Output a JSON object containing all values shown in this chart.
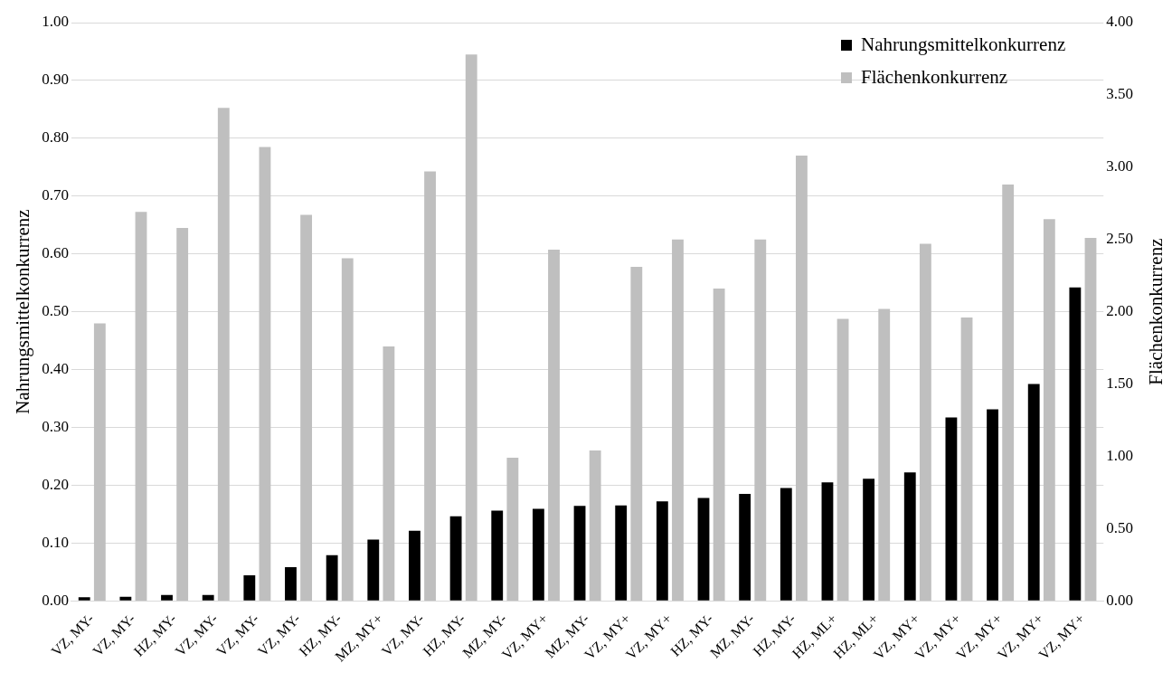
{
  "chart_data": {
    "type": "bar",
    "ylabel": "Nahrungsmittelkonkurrenz",
    "y2label": "Flächenkonkurrenz",
    "categories": [
      "VZ, MY-",
      "VZ, MY-",
      "HZ, MY-",
      "VZ, MY-",
      "VZ, MY-",
      "VZ, MY-",
      "HZ, MY-",
      "MZ, MY+",
      "VZ, MY-",
      "HZ, MY-",
      "MZ, MY-",
      "VZ, MY+",
      "MZ, MY-",
      "VZ, MY+",
      "VZ, MY+",
      "HZ, MY-",
      "MZ, MY-",
      "HZ, MY-",
      "HZ, ML+",
      "HZ, ML+",
      "VZ, MY+",
      "VZ, MY+",
      "VZ, MY+",
      "VZ, MY+",
      "VZ, MY+"
    ],
    "series": [
      {
        "name": "Nahrungsmittelkonkurrenz",
        "color": "#000000",
        "values": [
          0.006,
          0.007,
          0.01,
          0.01,
          0.044,
          0.058,
          0.079,
          0.106,
          0.121,
          0.146,
          0.156,
          0.159,
          0.164,
          0.165,
          0.172,
          0.178,
          0.185,
          0.195,
          0.205,
          0.211,
          0.222,
          0.317,
          0.331,
          0.375,
          0.542
        ]
      },
      {
        "name": "Flächenkonkurrenz",
        "color": "#bfbfbf",
        "axis": "y2",
        "values": [
          1.92,
          2.69,
          2.58,
          3.41,
          3.14,
          2.67,
          2.37,
          1.76,
          2.97,
          3.78,
          0.99,
          2.43,
          1.04,
          2.31,
          2.5,
          2.16,
          2.5,
          3.08,
          1.95,
          2.02,
          2.47,
          1.96,
          2.88,
          2.64,
          2.51
        ]
      }
    ],
    "ylim": [
      0,
      1
    ],
    "yticks": [
      {
        "value": 0,
        "label": "0.00"
      },
      {
        "value": 0.1,
        "label": "0.10"
      },
      {
        "value": 0.2,
        "label": "0.20"
      },
      {
        "value": 0.3,
        "label": "0.30"
      },
      {
        "value": 0.4,
        "label": "0.40"
      },
      {
        "value": 0.5,
        "label": "0.50"
      },
      {
        "value": 0.6,
        "label": "0.60"
      },
      {
        "value": 0.7,
        "label": "0.70"
      },
      {
        "value": 0.8,
        "label": "0.80"
      },
      {
        "value": 0.9,
        "label": "0.90"
      },
      {
        "value": 1,
        "label": "1.00"
      }
    ],
    "y2lim": [
      0,
      4
    ],
    "y2ticks": [
      {
        "value": 0,
        "label": "0.00"
      },
      {
        "value": 0.5,
        "label": "0.50"
      },
      {
        "value": 1,
        "label": "1.00"
      },
      {
        "value": 1.5,
        "label": "1.50"
      },
      {
        "value": 2,
        "label": "2.00"
      },
      {
        "value": 2.5,
        "label": "2.50"
      },
      {
        "value": 3,
        "label": "3.00"
      },
      {
        "value": 3.5,
        "label": "3.50"
      },
      {
        "value": 4,
        "label": "4.00"
      }
    ],
    "grid": "y",
    "legend": "top right"
  }
}
